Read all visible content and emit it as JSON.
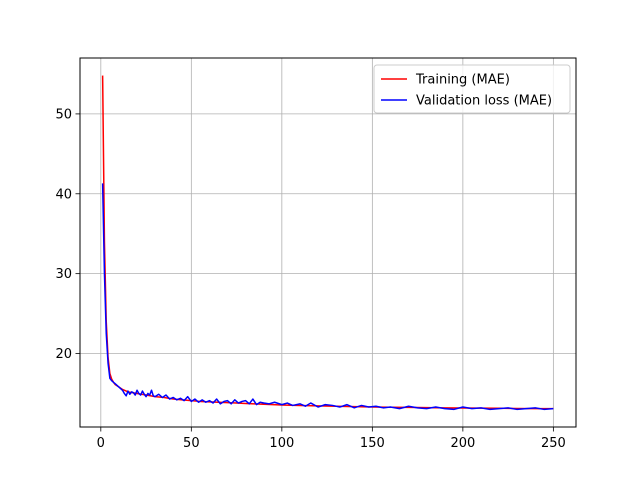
{
  "chart_data": {
    "type": "line",
    "title": "",
    "xlabel": "",
    "ylabel": "",
    "xlim": [
      -11.5,
      262.5
    ],
    "ylim": [
      10.8,
      57.0
    ],
    "x_ticks": [
      0,
      50,
      100,
      150,
      200,
      250
    ],
    "y_ticks": [
      20,
      30,
      40,
      50
    ],
    "grid": true,
    "legend_position": "top-right",
    "series": [
      {
        "name": "Training (MAE)",
        "color": "#ff0000",
        "x": [
          1,
          2,
          3,
          4,
          5,
          6,
          7,
          8,
          10,
          12,
          15,
          20,
          25,
          30,
          35,
          40,
          45,
          50,
          55,
          60,
          65,
          70,
          75,
          80,
          85,
          90,
          95,
          100,
          110,
          120,
          130,
          140,
          150,
          160,
          170,
          180,
          190,
          200,
          210,
          220,
          230,
          240,
          250
        ],
        "values": [
          54.8,
          34.0,
          24.0,
          19.5,
          17.5,
          16.8,
          16.4,
          16.1,
          15.8,
          15.5,
          15.2,
          15.0,
          14.8,
          14.6,
          14.5,
          14.3,
          14.2,
          14.1,
          14.0,
          13.95,
          13.9,
          13.85,
          13.8,
          13.75,
          13.7,
          13.65,
          13.6,
          13.55,
          13.5,
          13.45,
          13.4,
          13.35,
          13.3,
          13.28,
          13.25,
          13.23,
          13.2,
          13.18,
          13.16,
          13.14,
          13.12,
          13.1,
          13.1
        ]
      },
      {
        "name": "Validation loss (MAE)",
        "color": "#0000ff",
        "x": [
          1,
          2,
          3,
          4,
          5,
          6,
          7,
          8,
          9,
          10,
          11,
          12,
          13,
          14,
          15,
          16,
          17,
          18,
          19,
          20,
          21,
          22,
          23,
          24,
          25,
          26,
          27,
          28,
          29,
          30,
          32,
          34,
          36,
          38,
          40,
          42,
          44,
          46,
          48,
          50,
          52,
          54,
          56,
          58,
          60,
          62,
          64,
          66,
          68,
          70,
          72,
          74,
          76,
          78,
          80,
          82,
          84,
          86,
          88,
          90,
          93,
          96,
          100,
          103,
          106,
          110,
          113,
          116,
          120,
          124,
          128,
          132,
          136,
          140,
          144,
          148,
          152,
          156,
          160,
          165,
          170,
          175,
          180,
          185,
          190,
          195,
          200,
          205,
          210,
          215,
          220,
          225,
          230,
          235,
          240,
          245,
          250
        ],
        "values": [
          41.3,
          30.0,
          22.5,
          18.8,
          16.9,
          16.6,
          16.4,
          16.2,
          16.0,
          15.8,
          15.6,
          15.4,
          15.0,
          14.7,
          15.3,
          14.9,
          15.2,
          15.1,
          14.8,
          15.4,
          15.0,
          14.8,
          15.3,
          14.9,
          14.6,
          15.0,
          14.8,
          15.4,
          14.7,
          14.6,
          14.9,
          14.5,
          14.8,
          14.3,
          14.5,
          14.2,
          14.4,
          14.1,
          14.6,
          14.0,
          14.3,
          13.9,
          14.2,
          13.9,
          14.1,
          13.8,
          14.3,
          13.7,
          14.0,
          14.1,
          13.7,
          14.2,
          13.8,
          14.0,
          14.1,
          13.7,
          14.3,
          13.6,
          13.9,
          13.8,
          13.7,
          13.9,
          13.6,
          13.8,
          13.5,
          13.7,
          13.4,
          13.8,
          13.3,
          13.6,
          13.5,
          13.3,
          13.6,
          13.2,
          13.5,
          13.3,
          13.4,
          13.2,
          13.3,
          13.1,
          13.4,
          13.2,
          13.1,
          13.3,
          13.1,
          13.0,
          13.3,
          13.1,
          13.2,
          13.0,
          13.1,
          13.2,
          13.0,
          13.1,
          13.2,
          13.0,
          13.1
        ]
      }
    ]
  }
}
